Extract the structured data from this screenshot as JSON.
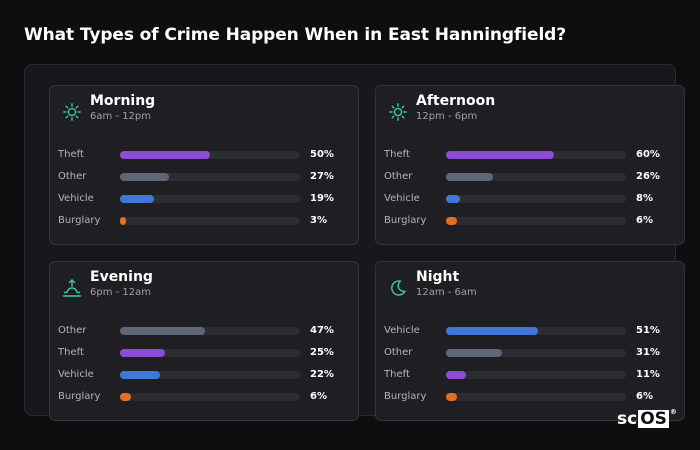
{
  "title": "What Types of Crime Happen When in East Hanningfield?",
  "colors": {
    "Theft": "#8e4bd6",
    "Other": "#5f6677",
    "Vehicle": "#3f78d8",
    "Burglary": "#e07020",
    "icon": "#3ec9a0"
  },
  "cards": [
    {
      "title": "Morning",
      "subtitle": "6am - 12pm",
      "icon": "sun-icon",
      "rows": [
        {
          "label": "Theft",
          "value": "50%",
          "pct": 50
        },
        {
          "label": "Other",
          "value": "27%",
          "pct": 27
        },
        {
          "label": "Vehicle",
          "value": "19%",
          "pct": 19
        },
        {
          "label": "Burglary",
          "value": "3%",
          "pct": 3
        }
      ]
    },
    {
      "title": "Afternoon",
      "subtitle": "12pm - 6pm",
      "icon": "sun-icon",
      "rows": [
        {
          "label": "Theft",
          "value": "60%",
          "pct": 60
        },
        {
          "label": "Other",
          "value": "26%",
          "pct": 26
        },
        {
          "label": "Vehicle",
          "value": "8%",
          "pct": 8
        },
        {
          "label": "Burglary",
          "value": "6%",
          "pct": 6
        }
      ]
    },
    {
      "title": "Evening",
      "subtitle": "6pm - 12am",
      "icon": "sunset-icon",
      "rows": [
        {
          "label": "Other",
          "value": "47%",
          "pct": 47
        },
        {
          "label": "Theft",
          "value": "25%",
          "pct": 25
        },
        {
          "label": "Vehicle",
          "value": "22%",
          "pct": 22
        },
        {
          "label": "Burglary",
          "value": "6%",
          "pct": 6
        }
      ]
    },
    {
      "title": "Night",
      "subtitle": "12am - 6am",
      "icon": "moon-icon",
      "rows": [
        {
          "label": "Vehicle",
          "value": "51%",
          "pct": 51
        },
        {
          "label": "Other",
          "value": "31%",
          "pct": 31
        },
        {
          "label": "Theft",
          "value": "11%",
          "pct": 11
        },
        {
          "label": "Burglary",
          "value": "6%",
          "pct": 6
        }
      ]
    }
  ],
  "logo": {
    "sc": "sc",
    "os": "OS",
    "reg": "®"
  }
}
